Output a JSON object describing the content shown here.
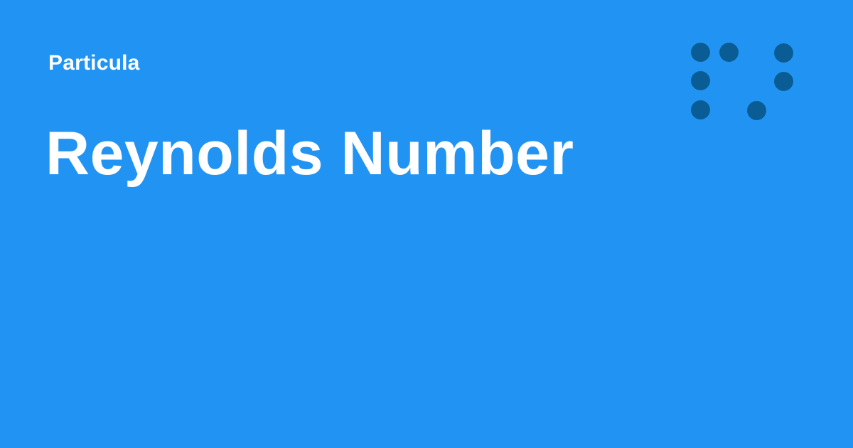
{
  "brand": {
    "name": "Particula"
  },
  "page": {
    "title": "Reynolds Number"
  },
  "logo": {
    "icon": "dot-grid-logo-icon"
  },
  "colors": {
    "background": "#2194f3",
    "text": "#ffffff",
    "logo_dots": "#0a5d94"
  }
}
